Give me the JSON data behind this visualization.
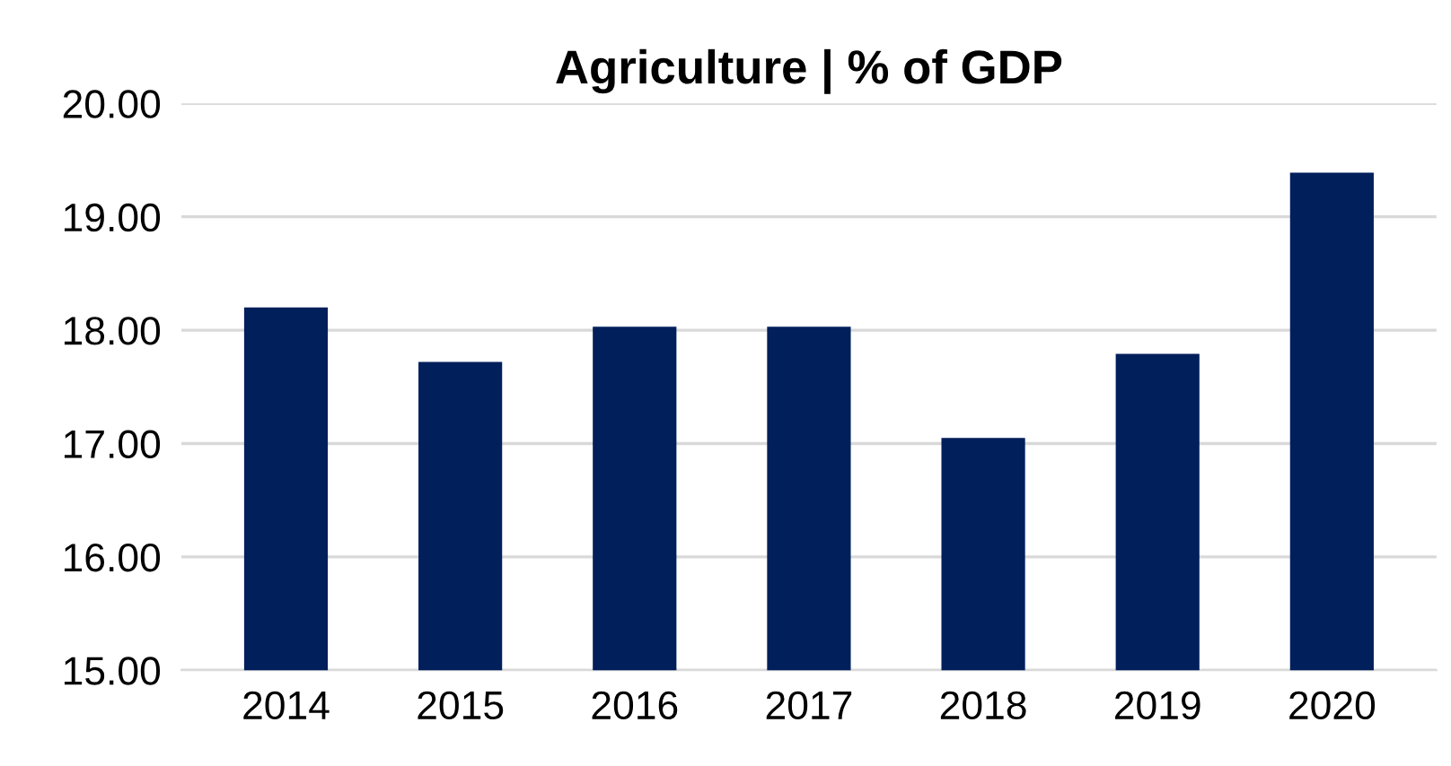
{
  "chart_data": {
    "type": "bar",
    "title": "Agriculture | % of GDP",
    "categories": [
      "2014",
      "2015",
      "2016",
      "2017",
      "2018",
      "2019",
      "2020"
    ],
    "values": [
      18.2,
      17.72,
      18.03,
      18.03,
      17.05,
      17.79,
      19.39
    ],
    "color": "#001f5b",
    "ylim": [
      15,
      20
    ],
    "yticks": [
      {
        "value": 15,
        "label": "15.00"
      },
      {
        "value": 16,
        "label": "16.00"
      },
      {
        "value": 17,
        "label": "17.00"
      },
      {
        "value": 18,
        "label": "18.00"
      },
      {
        "value": 19,
        "label": "19.00"
      },
      {
        "value": 20,
        "label": "20.00"
      }
    ],
    "grid": "y",
    "legend": false
  }
}
